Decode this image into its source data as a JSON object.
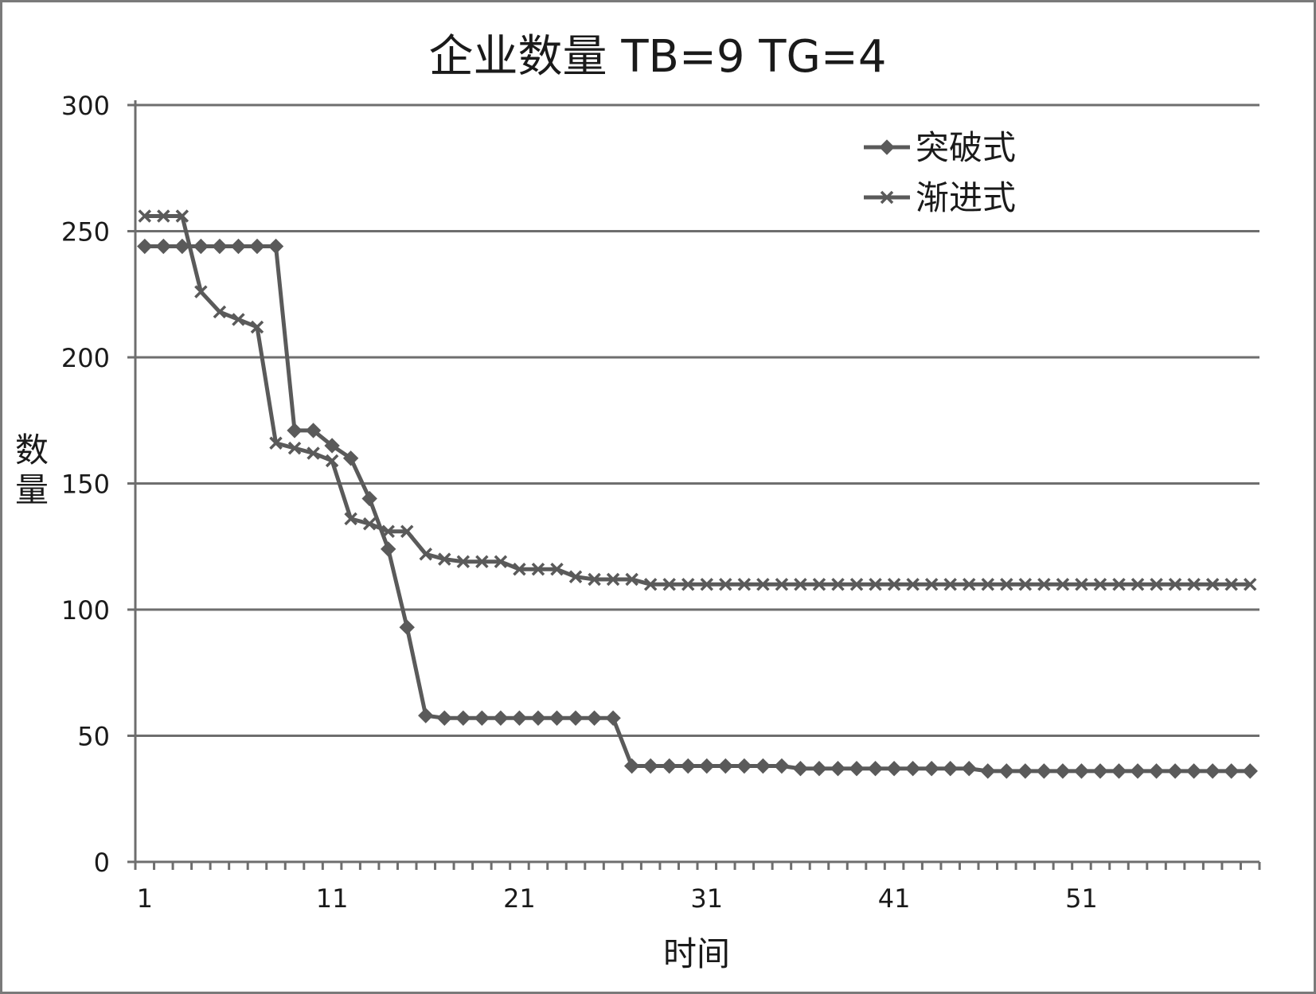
{
  "chart_data": {
    "type": "line",
    "title": "企业数量 TB=9 TG=4",
    "xlabel": "时间",
    "ylabel": "数量",
    "ylim": [
      0,
      300
    ],
    "yticks": [
      "0",
      "50",
      "100",
      "150",
      "200",
      "250",
      "300"
    ],
    "xtick_labels": [
      "1",
      "11",
      "21",
      "31",
      "41",
      "51"
    ],
    "x": [
      1,
      2,
      3,
      4,
      5,
      6,
      7,
      8,
      9,
      10,
      11,
      12,
      13,
      14,
      15,
      16,
      17,
      18,
      19,
      20,
      21,
      22,
      23,
      24,
      25,
      26,
      27,
      28,
      29,
      30,
      31,
      32,
      33,
      34,
      35,
      36,
      37,
      38,
      39,
      40,
      41,
      42,
      43,
      44,
      45,
      46,
      47,
      48,
      49,
      50,
      51,
      52,
      53,
      54,
      55,
      56,
      57,
      58,
      59,
      60
    ],
    "grid": "horizontal",
    "legend_position": "top-right",
    "line_color": "#5a5a5a",
    "series": [
      {
        "name": "突破式",
        "marker": "diamond",
        "values": [
          244,
          244,
          244,
          244,
          244,
          244,
          244,
          244,
          171,
          171,
          165,
          160,
          144,
          124,
          93,
          58,
          57,
          57,
          57,
          57,
          57,
          57,
          57,
          57,
          57,
          57,
          38,
          38,
          38,
          38,
          38,
          38,
          38,
          38,
          38,
          37,
          37,
          37,
          37,
          37,
          37,
          37,
          37,
          37,
          37,
          36,
          36,
          36,
          36,
          36,
          36,
          36,
          36,
          36,
          36,
          36,
          36,
          36,
          36,
          36
        ]
      },
      {
        "name": "渐进式",
        "marker": "x",
        "values": [
          256,
          256,
          256,
          226,
          218,
          215,
          212,
          166,
          164,
          162,
          159,
          136,
          134,
          131,
          131,
          122,
          120,
          119,
          119,
          119,
          116,
          116,
          116,
          113,
          112,
          112,
          112,
          110,
          110,
          110,
          110,
          110,
          110,
          110,
          110,
          110,
          110,
          110,
          110,
          110,
          110,
          110,
          110,
          110,
          110,
          110,
          110,
          110,
          110,
          110,
          110,
          110,
          110,
          110,
          110,
          110,
          110,
          110,
          110,
          110
        ]
      }
    ]
  }
}
